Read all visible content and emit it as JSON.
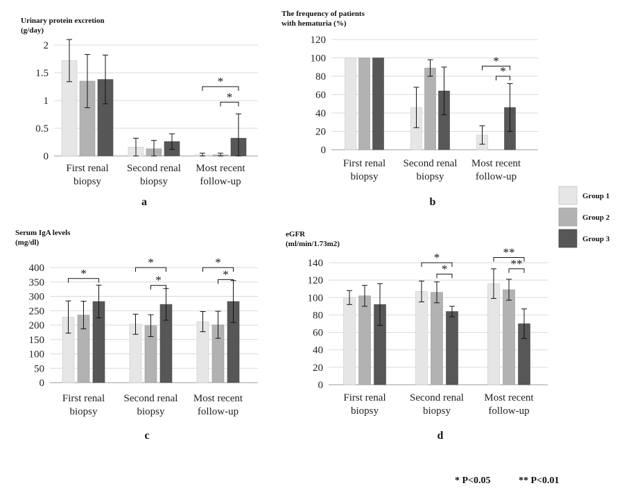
{
  "groups": [
    {
      "name": "Group 1",
      "color": "#e6e6e6"
    },
    {
      "name": "Group 2",
      "color": "#b2b2b2"
    },
    {
      "name": "Group 3",
      "color": "#575757"
    }
  ],
  "footnote": {
    "single": "*  P<0.05",
    "double": "**  P<0.01"
  },
  "chart_data": [
    {
      "id": "a",
      "panel_label": "a",
      "type": "bar",
      "title": [
        "Urinary protein excretion",
        "(g/day)"
      ],
      "categories": [
        [
          "First renal",
          "biopsy"
        ],
        [
          "Second renal",
          "biopsy"
        ],
        [
          "Most recent",
          "follow-up"
        ]
      ],
      "ylim": [
        0,
        2
      ],
      "ticks": [
        0,
        0.5,
        1,
        1.5,
        2
      ],
      "series": [
        {
          "name": "Group 1",
          "values": [
            1.72,
            0.16,
            0.02
          ],
          "err": [
            0.38,
            0.16,
            0.03
          ]
        },
        {
          "name": "Group 2",
          "values": [
            1.35,
            0.13,
            0.02
          ],
          "err": [
            0.48,
            0.15,
            0.03
          ]
        },
        {
          "name": "Group 3",
          "values": [
            1.38,
            0.26,
            0.32
          ],
          "err": [
            0.44,
            0.14,
            0.44
          ]
        }
      ],
      "sig": [
        {
          "cat": 2,
          "from": 0,
          "to": 2,
          "label": "*",
          "y": 1.25
        },
        {
          "cat": 2,
          "from": 1,
          "to": 2,
          "label": "*",
          "y": 0.97
        }
      ]
    },
    {
      "id": "b",
      "panel_label": "b",
      "type": "bar",
      "title": [
        "The frequency of patients",
        "with hematuria (%)"
      ],
      "categories": [
        [
          "First renal",
          "biopsy"
        ],
        [
          "Second renal",
          "biopsy"
        ],
        [
          "Most recent",
          "follow-up"
        ]
      ],
      "ylim": [
        0,
        120
      ],
      "ticks": [
        0,
        20,
        40,
        60,
        80,
        100,
        120
      ],
      "series": [
        {
          "name": "Group 1",
          "values": [
            100,
            46,
            16
          ],
          "err": [
            0,
            22,
            10
          ]
        },
        {
          "name": "Group 2",
          "values": [
            100,
            89,
            0
          ],
          "err": [
            0,
            9,
            0
          ]
        },
        {
          "name": "Group 3",
          "values": [
            100,
            64,
            46
          ],
          "err": [
            0,
            26,
            26
          ]
        }
      ],
      "sig": [
        {
          "cat": 2,
          "from": 0,
          "to": 2,
          "label": "*",
          "y": 91
        },
        {
          "cat": 2,
          "from": 1,
          "to": 2,
          "label": "*",
          "y": 80
        }
      ]
    },
    {
      "id": "c",
      "panel_label": "c",
      "type": "bar",
      "title": [
        "Serum IgA levels",
        "(mg/dl)"
      ],
      "categories": [
        [
          "First renal",
          "biopsy"
        ],
        [
          "Second renal",
          "biopsy"
        ],
        [
          "Most recent",
          "follow-up"
        ]
      ],
      "ylim": [
        0,
        400
      ],
      "ticks": [
        0,
        50,
        100,
        150,
        200,
        250,
        300,
        350,
        400
      ],
      "series": [
        {
          "name": "Group 1",
          "values": [
            228,
            203,
            212
          ],
          "err": [
            56,
            35,
            35
          ]
        },
        {
          "name": "Group 2",
          "values": [
            235,
            198,
            201
          ],
          "err": [
            48,
            38,
            47
          ]
        },
        {
          "name": "Group 3",
          "values": [
            282,
            272,
            282
          ],
          "err": [
            57,
            55,
            73
          ]
        }
      ],
      "sig": [
        {
          "cat": 0,
          "from": 0,
          "to": 2,
          "label": "*",
          "y": 362
        },
        {
          "cat": 1,
          "from": 0,
          "to": 2,
          "label": "*",
          "y": 400
        },
        {
          "cat": 1,
          "from": 1,
          "to": 2,
          "label": "*",
          "y": 338
        },
        {
          "cat": 2,
          "from": 0,
          "to": 2,
          "label": "*",
          "y": 400
        },
        {
          "cat": 2,
          "from": 1,
          "to": 2,
          "label": "*",
          "y": 358
        }
      ]
    },
    {
      "id": "d",
      "panel_label": "d",
      "type": "bar",
      "title": [
        "eGFR",
        "(ml/min/1.73m2)"
      ],
      "categories": [
        [
          "First renal",
          "biopsy"
        ],
        [
          "Second renal",
          "biopsy"
        ],
        [
          "Most recent",
          "follow-up"
        ]
      ],
      "ylim": [
        0,
        140
      ],
      "ticks": [
        0,
        20,
        40,
        60,
        80,
        100,
        120,
        140
      ],
      "series": [
        {
          "name": "Group 1",
          "values": [
            100,
            107,
            116
          ],
          "err": [
            8,
            12,
            17
          ]
        },
        {
          "name": "Group 2",
          "values": [
            102,
            106,
            109
          ],
          "err": [
            12,
            12,
            12
          ]
        },
        {
          "name": "Group 3",
          "values": [
            92,
            84,
            70
          ],
          "err": [
            24,
            6,
            17
          ]
        }
      ],
      "sig": [
        {
          "cat": 1,
          "from": 0,
          "to": 2,
          "label": "*",
          "y": 140
        },
        {
          "cat": 1,
          "from": 1,
          "to": 2,
          "label": "*",
          "y": 127
        },
        {
          "cat": 2,
          "from": 0,
          "to": 2,
          "label": "**",
          "y": 146
        },
        {
          "cat": 2,
          "from": 1,
          "to": 2,
          "label": "**",
          "y": 133
        }
      ]
    }
  ]
}
